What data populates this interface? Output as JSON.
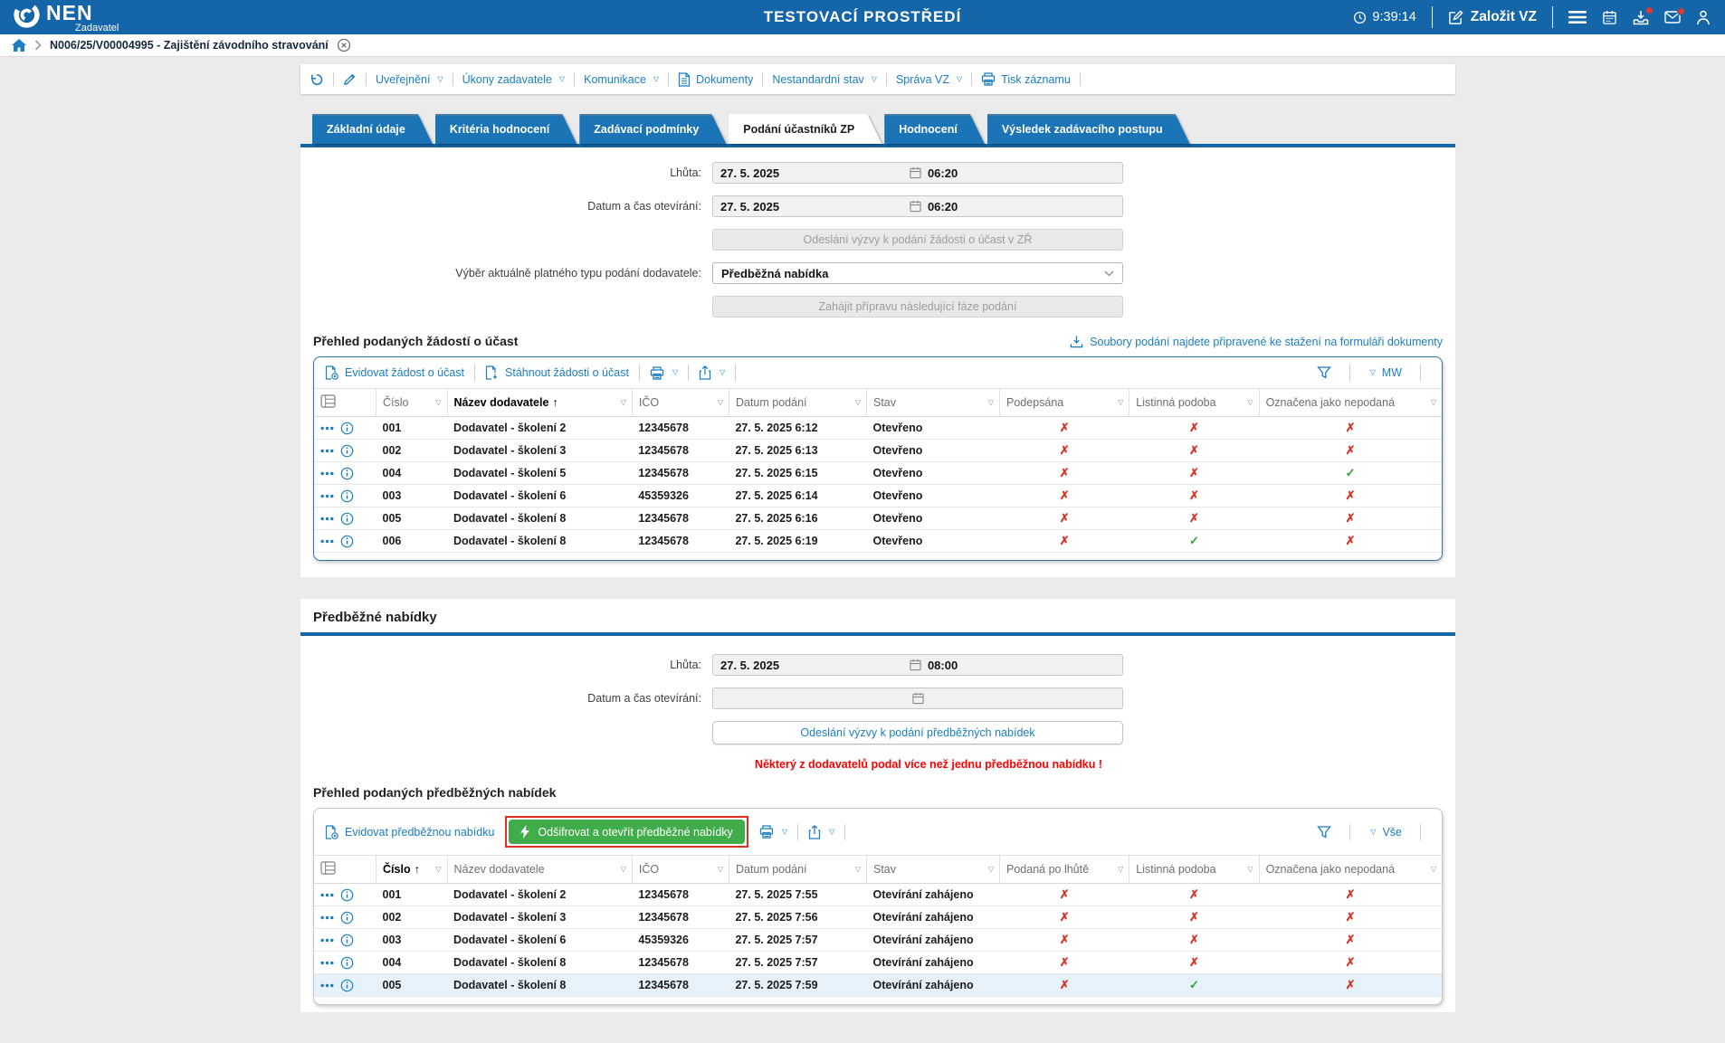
{
  "header": {
    "logo": "NEN",
    "role": "Zadavatel",
    "environment": "TESTOVACÍ PROSTŘEDÍ",
    "time": "9:39:14",
    "create_vz": "Založit VZ",
    "badge_color": "#e0392e"
  },
  "breadcrumb": {
    "title": "N006/25/V00004995 - Zajištění závodního stravování"
  },
  "record_toolbar": {
    "items": [
      {
        "key": "history",
        "icon": "undo"
      },
      {
        "key": "edit",
        "icon": "pencil"
      },
      {
        "key": "publication",
        "label": "Uveřejnění",
        "caret": true
      },
      {
        "key": "contracting-authority-actions",
        "label": "Úkony zadavatele",
        "caret": true
      },
      {
        "key": "communication",
        "label": "Komunikace",
        "caret": true
      },
      {
        "key": "documents",
        "label": "Dokumenty",
        "icon": "document"
      },
      {
        "key": "nonstandard-state",
        "label": "Nestandardní stav",
        "caret": true
      },
      {
        "key": "contract-administration",
        "label": "Správa VZ",
        "caret": true
      },
      {
        "key": "print-record",
        "label": "Tisk záznamu",
        "icon": "printer"
      }
    ]
  },
  "tabs": {
    "active_index": 3,
    "items": [
      "Základní údaje",
      "Kritéria hodnocení",
      "Zadávací podmínky",
      "Podání účastníků ZP",
      "Hodnocení",
      "Výsledek zadávacího postupu"
    ]
  },
  "section1": {
    "deadline_label": "Lhůta:",
    "deadline_date": "27. 5. 2025",
    "deadline_time": "06:20",
    "opening_label": "Datum a čas otevírání:",
    "opening_date": "27. 5. 2025",
    "opening_time": "06:20",
    "send_request_button": "Odeslání výzvy k podání žádosti o účast v ZŘ",
    "submission_type_label": "Výběr aktuálně platného typu podání dodavatele:",
    "submission_type_value": "Předběžná nabídka",
    "next_phase_button": "Zahájit přípravu následující fáze podání",
    "table_title": "Přehled podaných žádostí o účast",
    "files_link": "Soubory podání najdete připravené ke stažení na formuláři dokumenty",
    "table": {
      "actions": [
        {
          "key": "register-participation-request",
          "label": "Evidovat žádost o účast",
          "icon": "doc-plus"
        },
        {
          "key": "download-participation-requests",
          "label": "Stáhnout žádosti o účast",
          "icon": "doc-down"
        }
      ],
      "view_label": "MW",
      "columns": [
        "Číslo",
        "Název dodavatele",
        "IČO",
        "Datum podání",
        "Stav",
        "Podepsána",
        "Listinná podoba",
        "Označena jako nepodaná"
      ],
      "sort": {
        "column": 1,
        "direction": "asc"
      },
      "rows": [
        [
          "001",
          "Dodavatel - školení 2",
          "12345678",
          "27. 5. 2025 6:12",
          "Otevřeno",
          "no",
          "no",
          "no"
        ],
        [
          "002",
          "Dodavatel - školení 3",
          "12345678",
          "27. 5. 2025 6:13",
          "Otevřeno",
          "no",
          "no",
          "no"
        ],
        [
          "004",
          "Dodavatel - školení 5",
          "12345678",
          "27. 5. 2025 6:15",
          "Otevřeno",
          "no",
          "no",
          "yes"
        ],
        [
          "003",
          "Dodavatel - školení 6",
          "45359326",
          "27. 5. 2025 6:14",
          "Otevřeno",
          "no",
          "no",
          "no"
        ],
        [
          "005",
          "Dodavatel - školení 8",
          "12345678",
          "27. 5. 2025 6:16",
          "Otevřeno",
          "no",
          "no",
          "no"
        ],
        [
          "006",
          "Dodavatel - školení 8",
          "12345678",
          "27. 5. 2025 6:19",
          "Otevřeno",
          "no",
          "yes",
          "no"
        ]
      ]
    }
  },
  "section2": {
    "title": "Předběžné nabídky",
    "deadline_label": "Lhůta:",
    "deadline_date": "27. 5. 2025",
    "deadline_time": "08:00",
    "opening_label": "Datum a čas otevírání:",
    "send_button": "Odeslání výzvy k podání předběžných nabídek",
    "warning": "Některý z dodavatelů podal více než jednu předběžnou nabídku !",
    "table_title": "Přehled podaných předběžných nabídek",
    "table": {
      "actions": [
        {
          "key": "register-preliminary-offer",
          "label": "Evidovat předběžnou nabídku",
          "icon": "doc-plus"
        }
      ],
      "decrypt_button": "Odšifrovat a otevřít předběžné nabídky",
      "view_label": "Vše",
      "columns": [
        "Číslo",
        "Název dodavatele",
        "IČO",
        "Datum podání",
        "Stav",
        "Podaná po lhůtě",
        "Listinná podoba",
        "Označena jako nepodaná"
      ],
      "sort": {
        "column": 0,
        "direction": "asc"
      },
      "selected_row_index": 4,
      "rows": [
        [
          "001",
          "Dodavatel - školení 2",
          "12345678",
          "27. 5. 2025 7:55",
          "Otevírání zahájeno",
          "no",
          "no",
          "no"
        ],
        [
          "002",
          "Dodavatel - školení 3",
          "12345678",
          "27. 5. 2025 7:56",
          "Otevírání zahájeno",
          "no",
          "no",
          "no"
        ],
        [
          "003",
          "Dodavatel - školení 6",
          "45359326",
          "27. 5. 2025 7:57",
          "Otevírání zahájeno",
          "no",
          "no",
          "no"
        ],
        [
          "004",
          "Dodavatel - školení 8",
          "12345678",
          "27. 5. 2025 7:57",
          "Otevírání zahájeno",
          "no",
          "no",
          "no"
        ],
        [
          "005",
          "Dodavatel - školení 8",
          "12345678",
          "27. 5. 2025 7:59",
          "Otevírání zahájeno",
          "no",
          "yes",
          "no"
        ]
      ]
    }
  },
  "colors": {
    "header_blue": "#1565a9",
    "link_blue": "#1b7ec2",
    "tab_blue": "#1b74b6",
    "accent_red": "#dd2f23",
    "success_green": "#2ea336",
    "decrypt_green": "#41ad4a",
    "warning_red": "#ff0000"
  }
}
